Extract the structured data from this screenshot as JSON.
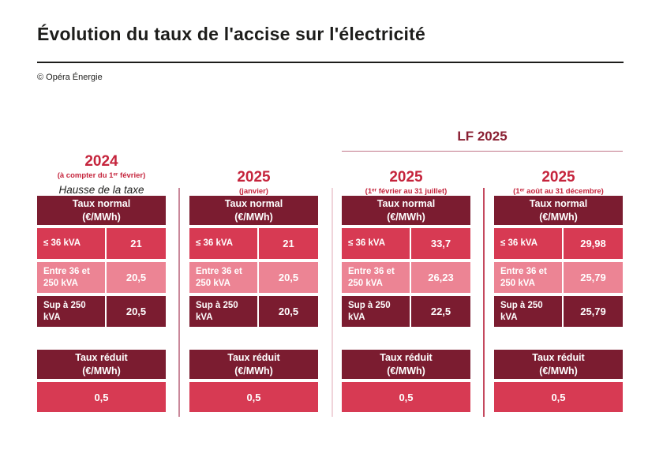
{
  "page": {
    "title": "Évolution du taux de l'accise sur l'électricité",
    "credit": "© Opéra Énergie"
  },
  "lf_banner": "LF 2025",
  "labels": {
    "normal_title": "Taux normal",
    "normal_unit": "(€/MWh)",
    "reduced_title": "Taux réduit",
    "reduced_unit": "(€/MWh)"
  },
  "columns": [
    {
      "year": "2024",
      "period": "(à compter du 1ᵉʳ février)",
      "note": "Hausse de la taxe",
      "rows": [
        {
          "label": "≤ 36 kVA",
          "value": "21"
        },
        {
          "label": "Entre 36 et 250 kVA",
          "value": "20,5"
        },
        {
          "label": "Sup à 250 kVA",
          "value": "20,5"
        }
      ],
      "reduced_value": "0,5"
    },
    {
      "year": "2025",
      "period": "(janvier)",
      "rows": [
        {
          "label": "≤ 36 kVA",
          "value": "21"
        },
        {
          "label": "Entre 36 et 250 kVA",
          "value": "20,5"
        },
        {
          "label": "Sup à 250 kVA",
          "value": "20,5"
        }
      ],
      "reduced_value": "0,5"
    },
    {
      "year": "2025",
      "period": "(1ᵉʳ février au 31 juillet)",
      "rows": [
        {
          "label": "≤ 36 kVA",
          "value": "33,7"
        },
        {
          "label": "Entre 36 et 250 kVA",
          "value": "26,23"
        },
        {
          "label": "Sup à 250 kVA",
          "value": "22,5"
        }
      ],
      "reduced_value": "0,5"
    },
    {
      "year": "2025",
      "period": "(1ᵉʳ août au 31 décembre)",
      "rows": [
        {
          "label": "≤ 36 kVA",
          "value": "29,98"
        },
        {
          "label": "Entre 36 et 250 kVA",
          "value": "25,79"
        },
        {
          "label": "Sup à 250 kVA",
          "value": "25,79"
        }
      ],
      "reduced_value": "0,5"
    }
  ],
  "colors": {
    "accent_red": "#c5243c",
    "dark_maroon": "#7b1c30",
    "row_red": "#d73a53",
    "row_pink": "#ec8494",
    "text_black": "#1d1d1b",
    "lf_text": "#8a2033"
  },
  "chart_data": {
    "type": "table",
    "title": "Évolution du taux de l'accise sur l'électricité",
    "unit": "€/MWh",
    "columns": [
      "2024 (à compter du 1ᵉʳ février)",
      "2025 (janvier)",
      "2025 (1ᵉʳ février au 31 juillet)",
      "2025 (1ᵉʳ août au 31 décembre)"
    ],
    "rows": [
      {
        "label": "Taux normal — ≤ 36 kVA",
        "values": [
          21,
          21,
          33.7,
          29.98
        ]
      },
      {
        "label": "Taux normal — Entre 36 et 250 kVA",
        "values": [
          20.5,
          20.5,
          26.23,
          25.79
        ]
      },
      {
        "label": "Taux normal — Sup à 250 kVA",
        "values": [
          20.5,
          20.5,
          22.5,
          25.79
        ]
      },
      {
        "label": "Taux réduit",
        "values": [
          0.5,
          0.5,
          0.5,
          0.5
        ]
      }
    ],
    "annotations": [
      "Hausse de la taxe",
      "LF 2025"
    ]
  }
}
